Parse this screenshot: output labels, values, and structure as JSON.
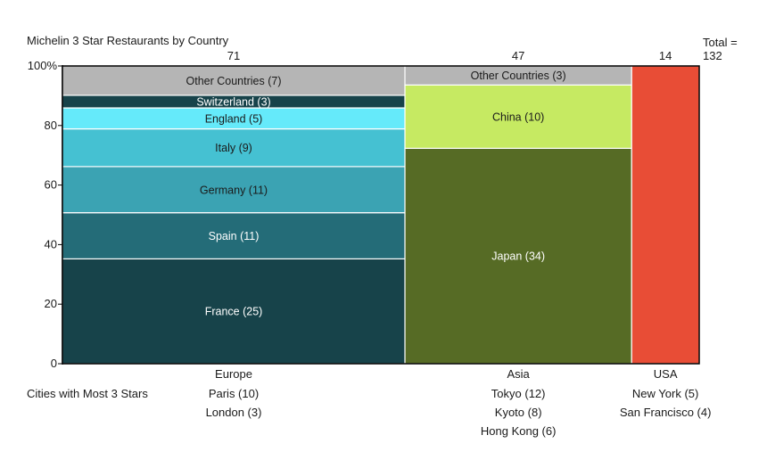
{
  "chart_data": {
    "type": "mosaic",
    "title": "Michelin 3 Star Restaurants by Country",
    "total_label": "Total =",
    "total_value": "132",
    "y_ticks": [
      "0",
      "20",
      "40",
      "60",
      "80",
      "100%"
    ],
    "ylim": [
      0,
      100
    ],
    "columns": [
      {
        "name": "Europe",
        "total": 71,
        "segments": [
          {
            "label": "France (25)",
            "value": 25,
            "color": "#17434a",
            "text_color": "#ffffff"
          },
          {
            "label": "Spain (11)",
            "value": 11,
            "color": "#246c78",
            "text_color": "#ffffff"
          },
          {
            "label": "Germany (11)",
            "value": 11,
            "color": "#3ba3b3",
            "text_color": "#1a1a1a"
          },
          {
            "label": "Italy (9)",
            "value": 9,
            "color": "#45c1d2",
            "text_color": "#1a1a1a"
          },
          {
            "label": "England (5)",
            "value": 5,
            "color": "#65eafa",
            "text_color": "#1a1a1a"
          },
          {
            "label": "Switzerland (3)",
            "value": 3,
            "color": "#17434a",
            "text_color": "#ffffff"
          },
          {
            "label": "Other Countries (7)",
            "value": 7,
            "color": "#b5b5b5",
            "text_color": "#1a1a1a"
          }
        ],
        "cities": [
          "Paris (10)",
          "London (3)"
        ]
      },
      {
        "name": "Asia",
        "total": 47,
        "segments": [
          {
            "label": "Japan (34)",
            "value": 34,
            "color": "#566b25",
            "text_color": "#ffffff"
          },
          {
            "label": "China (10)",
            "value": 10,
            "color": "#c6ea62",
            "text_color": "#1a1a1a"
          },
          {
            "label": "Other Countries (3)",
            "value": 3,
            "color": "#b5b5b5",
            "text_color": "#1a1a1a"
          }
        ],
        "cities": [
          "Tokyo (12)",
          "Kyoto (8)",
          "Hong Kong (6)"
        ]
      },
      {
        "name": "USA",
        "total": 14,
        "segments": [
          {
            "label": "",
            "value": 14,
            "color": "#e84d36",
            "text_color": "#ffffff"
          }
        ],
        "cities": [
          "New York (5)",
          "San Francisco (4)"
        ]
      }
    ],
    "cities_label": "Cities with Most 3 Stars"
  }
}
